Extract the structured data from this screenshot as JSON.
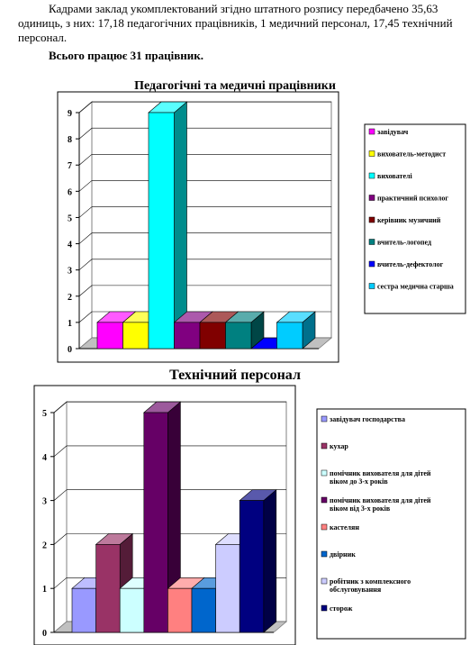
{
  "text": {
    "paragraph1": "Кадрами заклад укомплектований згідно штатного розпису передбачено 35,63 одиниць, з них: 17,18 педагогічних працівників, 1 медичний персонал, 17,45 технічний персонал.",
    "paragraph2": "Всього працює 31 працівник."
  },
  "chart_data": [
    {
      "type": "bar",
      "title": "Педагогічні та медичні працівники",
      "ylim": [
        0,
        9
      ],
      "yticks": [
        0,
        1,
        2,
        3,
        4,
        5,
        6,
        7,
        8,
        9
      ],
      "series": [
        {
          "name": "завідувач",
          "value": 1,
          "color": "#ff00ff"
        },
        {
          "name": "вихователь-методист",
          "value": 1,
          "color": "#ffff00"
        },
        {
          "name": "вихователі",
          "value": 9,
          "color": "#00ffff"
        },
        {
          "name": "практичний психолог",
          "value": 1,
          "color": "#800080"
        },
        {
          "name": "керівник музичний",
          "value": 1,
          "color": "#800000"
        },
        {
          "name": "вчитель-логопед",
          "value": 1,
          "color": "#008080"
        },
        {
          "name": "вчитель-дефектолог",
          "value": 0,
          "color": "#0000ff"
        },
        {
          "name": "сестра медична старша",
          "value": 1,
          "color": "#00ccff"
        }
      ],
      "grid": true,
      "legend": "right"
    },
    {
      "type": "bar",
      "title": "Технічний персонал",
      "ylim": [
        0,
        5
      ],
      "yticks": [
        0,
        1,
        2,
        3,
        4,
        5
      ],
      "series": [
        {
          "name": "завідувач господарства",
          "value": 1,
          "color": "#9999ff"
        },
        {
          "name": "кухар",
          "value": 2,
          "color": "#993366"
        },
        {
          "name": "помічник вихователя для дітей віком до 3-х років",
          "value": 1,
          "color": "#ccffff"
        },
        {
          "name": "помічник вихователя для дітей віком від 3-х років",
          "value": 5,
          "color": "#660066"
        },
        {
          "name": "кастелян",
          "value": 1,
          "color": "#ff8080"
        },
        {
          "name": "двірник",
          "value": 1,
          "color": "#0066cc"
        },
        {
          "name": "робітник з комплексного обслуговування",
          "value": 2,
          "color": "#ccccff"
        },
        {
          "name": "сторож",
          "value": 3,
          "color": "#000080"
        }
      ],
      "grid": true,
      "legend": "right"
    }
  ]
}
